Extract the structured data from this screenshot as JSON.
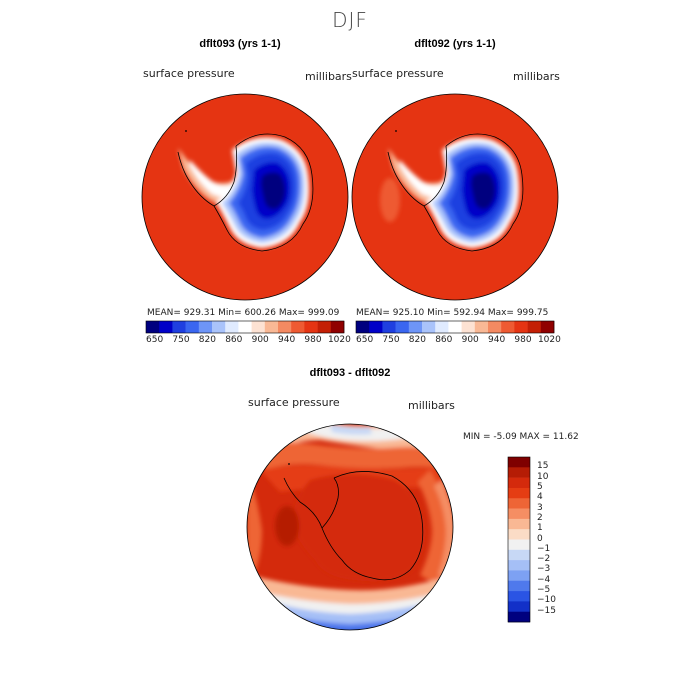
{
  "chart_data": [
    {
      "type": "heatmap",
      "title": "dflt093 (yrs 1-1)",
      "variable": "surface pressure",
      "units": "millibars",
      "stats": "MEAN= 929.31   Min= 600.26   Max= 999.09",
      "colorbar_ticks": [
        "650",
        "750",
        "820",
        "860",
        "900",
        "940",
        "980",
        "1020"
      ]
    },
    {
      "type": "heatmap",
      "title": "dflt092 (yrs 1-1)",
      "variable": "surface pressure",
      "units": "millibars",
      "stats": "MEAN= 925.10   Min= 592.94   Max= 999.75",
      "colorbar_ticks": [
        "650",
        "750",
        "820",
        "860",
        "900",
        "940",
        "980",
        "1020"
      ]
    },
    {
      "type": "heatmap",
      "title": "dflt093 - dflt092",
      "variable": "surface pressure",
      "units": "millibars",
      "stats": "MIN =   -5.09  MAX =   11.62",
      "colorbar_ticks": [
        "15",
        "10",
        "5",
        "4",
        "3",
        "2",
        "1",
        "0",
        "−1",
        "−2",
        "−3",
        "−4",
        "−5",
        "−10",
        "−15"
      ]
    }
  ],
  "figure_title": "DJF",
  "colors": {
    "abs_scale": [
      "#00007f",
      "#0000c8",
      "#1f3fe0",
      "#3a66f0",
      "#6e95f7",
      "#a9c3fb",
      "#e0ebff",
      "#ffffff",
      "#fde2d3",
      "#f9b895",
      "#f48a62",
      "#ee5a32",
      "#e53412",
      "#c41f05",
      "#900000"
    ],
    "diff_scale": [
      "#7f0000",
      "#b51c05",
      "#d42a0c",
      "#e53d13",
      "#ee6536",
      "#f58e63",
      "#f9b894",
      "#fbdcc6",
      "#f1f1f1",
      "#c7d8f5",
      "#a5bff6",
      "#7da1f3",
      "#4f79ec",
      "#2a54e4",
      "#1230c8",
      "#00007f"
    ]
  }
}
